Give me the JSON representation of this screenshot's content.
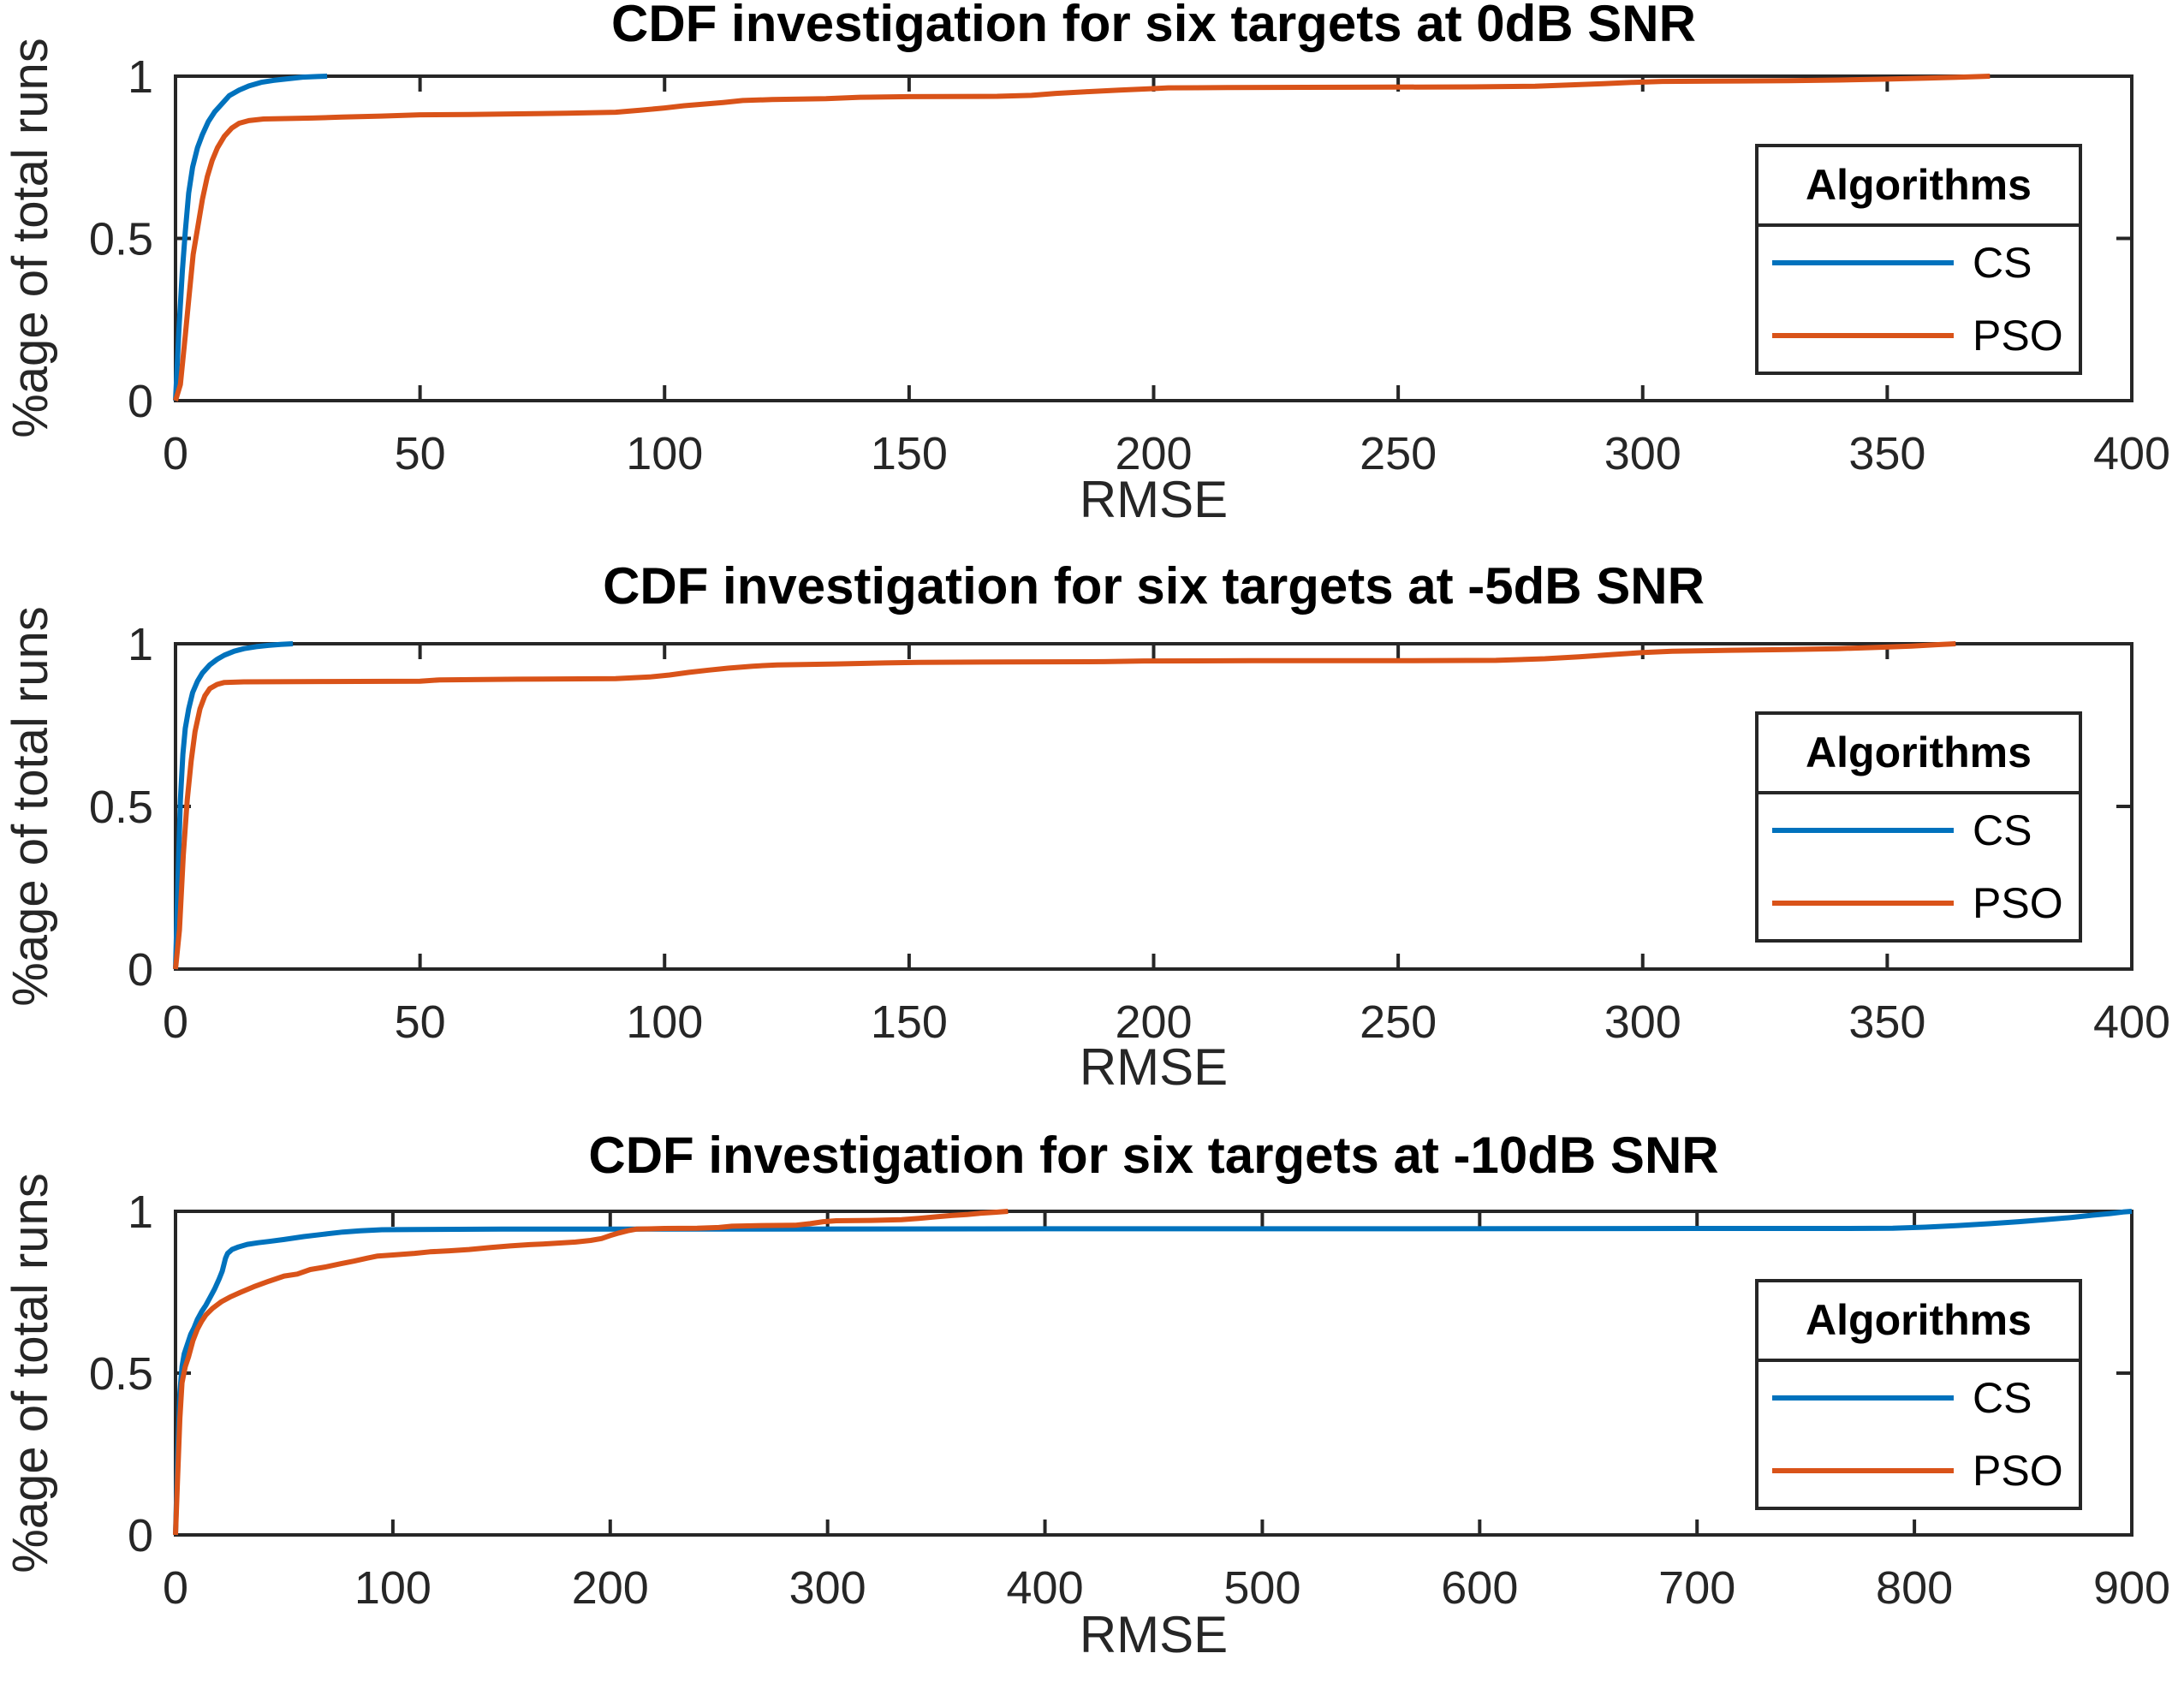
{
  "figure": {
    "background": "#ffffff",
    "axis_color": "#262626",
    "text_color": "#262626",
    "cs_color": "#0072BD",
    "pso_color": "#D95319"
  },
  "chart_data": [
    {
      "type": "line",
      "title": "CDF investigation for six targets at 0dB SNR",
      "xlabel": "RMSE",
      "ylabel": "%age of total runs",
      "xlim": [
        0,
        400
      ],
      "ylim": [
        0,
        1
      ],
      "xticks": [
        0,
        50,
        100,
        150,
        200,
        250,
        300,
        350,
        400
      ],
      "yticks": [
        0,
        0.5,
        1
      ],
      "ytick_labels": [
        "0",
        "0.5",
        "1"
      ],
      "grid": false,
      "legend": {
        "title": "Algorithms",
        "position": "right-lower",
        "entries": [
          {
            "label": "CS",
            "color": "#0072BD"
          },
          {
            "label": "PSO",
            "color": "#D95319"
          }
        ]
      },
      "series": [
        {
          "name": "CS",
          "color": "#0072BD",
          "points": [
            [
              0,
              0
            ],
            [
              0.7,
              0.22
            ],
            [
              1.4,
              0.4
            ],
            [
              2,
              0.52
            ],
            [
              2.7,
              0.64
            ],
            [
              3.5,
              0.72
            ],
            [
              4.5,
              0.78
            ],
            [
              5.5,
              0.82
            ],
            [
              6.7,
              0.86
            ],
            [
              8,
              0.89
            ],
            [
              9.5,
              0.915
            ],
            [
              11,
              0.94
            ],
            [
              13,
              0.957
            ],
            [
              15,
              0.97
            ],
            [
              17.5,
              0.981
            ],
            [
              20,
              0.987
            ],
            [
              23,
              0.992
            ],
            [
              26,
              0.997
            ],
            [
              29,
              0.999
            ],
            [
              31,
              1.0
            ]
          ]
        },
        {
          "name": "PSO",
          "color": "#D95319",
          "points": [
            [
              0,
              0
            ],
            [
              1,
              0.05
            ],
            [
              2,
              0.2
            ],
            [
              2.7,
              0.31
            ],
            [
              3.6,
              0.45
            ],
            [
              4.5,
              0.53
            ],
            [
              5.5,
              0.62
            ],
            [
              6.5,
              0.69
            ],
            [
              7.5,
              0.74
            ],
            [
              8.6,
              0.78
            ],
            [
              10,
              0.815
            ],
            [
              11.5,
              0.84
            ],
            [
              13,
              0.855
            ],
            [
              15,
              0.863
            ],
            [
              18,
              0.868
            ],
            [
              28,
              0.871
            ],
            [
              34,
              0.874
            ],
            [
              42,
              0.877
            ],
            [
              50,
              0.881
            ],
            [
              60,
              0.882
            ],
            [
              70,
              0.884
            ],
            [
              80,
              0.886
            ],
            [
              90,
              0.889
            ],
            [
              95,
              0.895
            ],
            [
              100,
              0.902
            ],
            [
              104,
              0.909
            ],
            [
              108,
              0.914
            ],
            [
              112,
              0.919
            ],
            [
              116,
              0.925
            ],
            [
              122,
              0.928
            ],
            [
              133,
              0.931
            ],
            [
              140,
              0.935
            ],
            [
              150,
              0.937
            ],
            [
              168,
              0.938
            ],
            [
              175,
              0.941
            ],
            [
              180,
              0.947
            ],
            [
              186,
              0.952
            ],
            [
              193,
              0.957
            ],
            [
              199,
              0.961
            ],
            [
              203,
              0.964
            ],
            [
              215,
              0.965
            ],
            [
              240,
              0.966
            ],
            [
              265,
              0.967
            ],
            [
              278,
              0.969
            ],
            [
              285,
              0.973
            ],
            [
              292,
              0.977
            ],
            [
              298,
              0.981
            ],
            [
              304,
              0.984
            ],
            [
              315,
              0.985
            ],
            [
              330,
              0.986
            ],
            [
              340,
              0.988
            ],
            [
              350,
              0.991
            ],
            [
              358,
              0.994
            ],
            [
              365,
              0.997
            ],
            [
              371,
              1.0
            ]
          ]
        }
      ]
    },
    {
      "type": "line",
      "title": "CDF investigation for six targets at -5dB SNR",
      "xlabel": "RMSE",
      "ylabel": "%age of total runs",
      "xlim": [
        0,
        400
      ],
      "ylim": [
        0,
        1
      ],
      "xticks": [
        0,
        50,
        100,
        150,
        200,
        250,
        300,
        350,
        400
      ],
      "yticks": [
        0,
        0.5,
        1
      ],
      "ytick_labels": [
        "0",
        "0.5",
        "1"
      ],
      "grid": false,
      "legend": {
        "title": "Algorithms",
        "position": "right-lower",
        "entries": [
          {
            "label": "CS",
            "color": "#0072BD"
          },
          {
            "label": "PSO",
            "color": "#D95319"
          }
        ]
      },
      "series": [
        {
          "name": "CS",
          "color": "#0072BD",
          "points": [
            [
              0,
              0
            ],
            [
              0.5,
              0.28
            ],
            [
              1,
              0.52
            ],
            [
              1.5,
              0.66
            ],
            [
              2,
              0.74
            ],
            [
              2.7,
              0.8
            ],
            [
              3.5,
              0.85
            ],
            [
              4.5,
              0.885
            ],
            [
              5.5,
              0.91
            ],
            [
              7,
              0.935
            ],
            [
              8.5,
              0.952
            ],
            [
              10,
              0.965
            ],
            [
              12,
              0.977
            ],
            [
              14,
              0.985
            ],
            [
              16.5,
              0.991
            ],
            [
              19,
              0.995
            ],
            [
              21.5,
              0.998
            ],
            [
              24,
              1.0
            ]
          ]
        },
        {
          "name": "PSO",
          "color": "#D95319",
          "points": [
            [
              0,
              0
            ],
            [
              0.8,
              0.12
            ],
            [
              1.6,
              0.35
            ],
            [
              2.4,
              0.52
            ],
            [
              3.2,
              0.64
            ],
            [
              4,
              0.73
            ],
            [
              5,
              0.8
            ],
            [
              6,
              0.84
            ],
            [
              7,
              0.862
            ],
            [
              8.5,
              0.875
            ],
            [
              10,
              0.881
            ],
            [
              14,
              0.883
            ],
            [
              30,
              0.884
            ],
            [
              50,
              0.885
            ],
            [
              54,
              0.889
            ],
            [
              70,
              0.891
            ],
            [
              90,
              0.893
            ],
            [
              97,
              0.898
            ],
            [
              101,
              0.904
            ],
            [
              105,
              0.912
            ],
            [
              109,
              0.919
            ],
            [
              113,
              0.925
            ],
            [
              118,
              0.931
            ],
            [
              123,
              0.935
            ],
            [
              135,
              0.938
            ],
            [
              145,
              0.941
            ],
            [
              152,
              0.943
            ],
            [
              170,
              0.944
            ],
            [
              190,
              0.945
            ],
            [
              198,
              0.947
            ],
            [
              220,
              0.948
            ],
            [
              250,
              0.948
            ],
            [
              270,
              0.949
            ],
            [
              280,
              0.954
            ],
            [
              287,
              0.96
            ],
            [
              294,
              0.967
            ],
            [
              300,
              0.973
            ],
            [
              306,
              0.977
            ],
            [
              318,
              0.98
            ],
            [
              330,
              0.982
            ],
            [
              340,
              0.985
            ],
            [
              348,
              0.989
            ],
            [
              355,
              0.993
            ],
            [
              360,
              0.997
            ],
            [
              364,
              1.0
            ]
          ]
        }
      ]
    },
    {
      "type": "line",
      "title": "CDF investigation for six targets at -10dB SNR",
      "xlabel": "RMSE",
      "ylabel": "%age of total runs",
      "xlim": [
        0,
        900
      ],
      "ylim": [
        0,
        1
      ],
      "xticks": [
        0,
        100,
        200,
        300,
        400,
        500,
        600,
        700,
        800,
        900
      ],
      "yticks": [
        0,
        0.5,
        1
      ],
      "ytick_labels": [
        "0",
        "0.5",
        "1"
      ],
      "grid": false,
      "legend": {
        "title": "Algorithms",
        "position": "right-lower",
        "entries": [
          {
            "label": "CS",
            "color": "#0072BD"
          },
          {
            "label": "PSO",
            "color": "#D95319"
          }
        ]
      },
      "series": [
        {
          "name": "CS",
          "color": "#0072BD",
          "points": [
            [
              0,
              0
            ],
            [
              1,
              0.25
            ],
            [
              2,
              0.44
            ],
            [
              3,
              0.52
            ],
            [
              4,
              0.56
            ],
            [
              5.5,
              0.59
            ],
            [
              7,
              0.62
            ],
            [
              8.5,
              0.64
            ],
            [
              10,
              0.665
            ],
            [
              12,
              0.69
            ],
            [
              14,
              0.71
            ],
            [
              16,
              0.735
            ],
            [
              18,
              0.76
            ],
            [
              20,
              0.79
            ],
            [
              21.5,
              0.815
            ],
            [
              23,
              0.855
            ],
            [
              24,
              0.87
            ],
            [
              26,
              0.882
            ],
            [
              29,
              0.89
            ],
            [
              33,
              0.898
            ],
            [
              38,
              0.903
            ],
            [
              43,
              0.907
            ],
            [
              50,
              0.913
            ],
            [
              59,
              0.922
            ],
            [
              68,
              0.929
            ],
            [
              77,
              0.936
            ],
            [
              85,
              0.94
            ],
            [
              95,
              0.943
            ],
            [
              110,
              0.944
            ],
            [
              150,
              0.945
            ],
            [
              250,
              0.945
            ],
            [
              400,
              0.946
            ],
            [
              550,
              0.946
            ],
            [
              700,
              0.947
            ],
            [
              770,
              0.947
            ],
            [
              790,
              0.948
            ],
            [
              805,
              0.951
            ],
            [
              820,
              0.956
            ],
            [
              835,
              0.962
            ],
            [
              848,
              0.968
            ],
            [
              860,
              0.974
            ],
            [
              872,
              0.981
            ],
            [
              882,
              0.988
            ],
            [
              890,
              0.993
            ],
            [
              896,
              0.998
            ],
            [
              900,
              1.0
            ]
          ]
        },
        {
          "name": "PSO",
          "color": "#D95319",
          "points": [
            [
              0,
              0
            ],
            [
              1,
              0.18
            ],
            [
              2,
              0.36
            ],
            [
              3,
              0.47
            ],
            [
              4.5,
              0.52
            ],
            [
              6,
              0.55
            ],
            [
              8,
              0.6
            ],
            [
              10,
              0.635
            ],
            [
              12,
              0.66
            ],
            [
              14,
              0.68
            ],
            [
              17,
              0.7
            ],
            [
              21,
              0.72
            ],
            [
              25,
              0.735
            ],
            [
              30,
              0.75
            ],
            [
              36,
              0.767
            ],
            [
              43,
              0.784
            ],
            [
              50,
              0.8
            ],
            [
              56,
              0.806
            ],
            [
              62,
              0.82
            ],
            [
              69,
              0.828
            ],
            [
              76,
              0.838
            ],
            [
              82,
              0.846
            ],
            [
              88,
              0.855
            ],
            [
              93,
              0.862
            ],
            [
              100,
              0.865
            ],
            [
              110,
              0.87
            ],
            [
              117,
              0.875
            ],
            [
              126,
              0.878
            ],
            [
              135,
              0.882
            ],
            [
              145,
              0.888
            ],
            [
              154,
              0.893
            ],
            [
              163,
              0.897
            ],
            [
              172,
              0.9
            ],
            [
              184,
              0.905
            ],
            [
              191,
              0.91
            ],
            [
              196,
              0.916
            ],
            [
              200,
              0.925
            ],
            [
              204,
              0.933
            ],
            [
              208,
              0.94
            ],
            [
              212,
              0.945
            ],
            [
              225,
              0.947
            ],
            [
              240,
              0.948
            ],
            [
              250,
              0.95
            ],
            [
              256,
              0.954
            ],
            [
              270,
              0.956
            ],
            [
              285,
              0.957
            ],
            [
              292,
              0.962
            ],
            [
              298,
              0.968
            ],
            [
              304,
              0.971
            ],
            [
              320,
              0.972
            ],
            [
              334,
              0.974
            ],
            [
              342,
              0.978
            ],
            [
              350,
              0.983
            ],
            [
              357,
              0.987
            ],
            [
              364,
              0.99
            ],
            [
              370,
              0.994
            ],
            [
              377,
              0.997
            ],
            [
              383,
              1.0
            ]
          ]
        }
      ]
    }
  ]
}
